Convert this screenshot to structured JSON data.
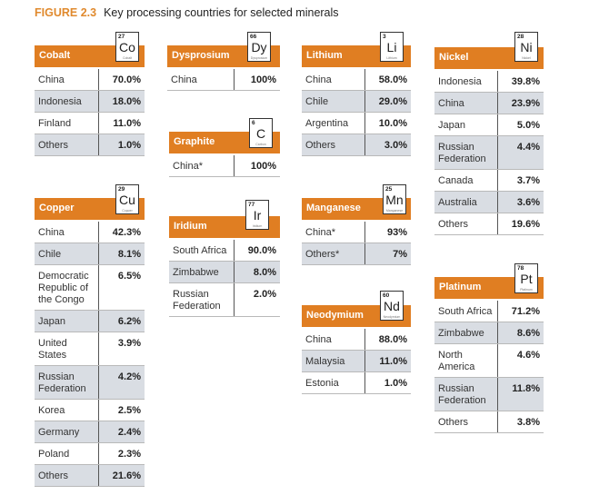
{
  "figure": {
    "number": "FIGURE 2.3",
    "title": "Key processing countries for selected minerals"
  },
  "colors": {
    "header": "#e07e22",
    "row_alt": "#d9dde3",
    "accent_text": "#e08a2e"
  },
  "cards": {
    "cobalt": {
      "name": "Cobalt",
      "element": {
        "number": "27",
        "symbol": "Co",
        "name": "Cobalt"
      },
      "rows": [
        {
          "country": "China",
          "pct": "70.0%"
        },
        {
          "country": "Indonesia",
          "pct": "18.0%"
        },
        {
          "country": "Finland",
          "pct": "11.0%"
        },
        {
          "country": "Others",
          "pct": "1.0%"
        }
      ]
    },
    "dysprosium": {
      "name": "Dysprosium",
      "element": {
        "number": "66",
        "symbol": "Dy",
        "name": "Dysprosium"
      },
      "rows": [
        {
          "country": "China",
          "pct": "100%"
        }
      ]
    },
    "lithium": {
      "name": "Lithium",
      "element": {
        "number": "3",
        "symbol": "Li",
        "name": "Lithium"
      },
      "rows": [
        {
          "country": "China",
          "pct": "58.0%"
        },
        {
          "country": "Chile",
          "pct": "29.0%"
        },
        {
          "country": "Argentina",
          "pct": "10.0%"
        },
        {
          "country": "Others",
          "pct": "3.0%"
        }
      ]
    },
    "nickel": {
      "name": "Nickel",
      "element": {
        "number": "28",
        "symbol": "Ni",
        "name": "Nickel"
      },
      "rows": [
        {
          "country": "Indonesia",
          "pct": "39.8%"
        },
        {
          "country": "China",
          "pct": "23.9%"
        },
        {
          "country": "Japan",
          "pct": "5.0%"
        },
        {
          "country": "Russian Federation",
          "pct": "4.4%"
        },
        {
          "country": "Canada",
          "pct": "3.7%"
        },
        {
          "country": "Australia",
          "pct": "3.6%"
        },
        {
          "country": "Others",
          "pct": "19.6%"
        }
      ]
    },
    "graphite": {
      "name": "Graphite",
      "element": {
        "number": "6",
        "symbol": "C",
        "name": "Carbon"
      },
      "rows": [
        {
          "country": "China*",
          "pct": "100%"
        }
      ]
    },
    "copper": {
      "name": "Copper",
      "element": {
        "number": "29",
        "symbol": "Cu",
        "name": "Copper"
      },
      "rows": [
        {
          "country": "China",
          "pct": "42.3%"
        },
        {
          "country": "Chile",
          "pct": "8.1%"
        },
        {
          "country": "Democratic Republic of the Congo",
          "pct": "6.5%"
        },
        {
          "country": "Japan",
          "pct": "6.2%"
        },
        {
          "country": "United States",
          "pct": "3.9%"
        },
        {
          "country": "Russian Federation",
          "pct": "4.2%"
        },
        {
          "country": "Korea",
          "pct": "2.5%"
        },
        {
          "country": "Germany",
          "pct": "2.4%"
        },
        {
          "country": "Poland",
          "pct": "2.3%"
        },
        {
          "country": "Others",
          "pct": "21.6%"
        }
      ]
    },
    "iridium": {
      "name": "Iridium",
      "element": {
        "number": "77",
        "symbol": "Ir",
        "name": "Iridium"
      },
      "rows": [
        {
          "country": "South Africa",
          "pct": "90.0%"
        },
        {
          "country": "Zimbabwe",
          "pct": "8.0%"
        },
        {
          "country": "Russian Federation",
          "pct": "2.0%"
        }
      ]
    },
    "manganese": {
      "name": "Manganese",
      "element": {
        "number": "25",
        "symbol": "Mn",
        "name": "Manganese"
      },
      "rows": [
        {
          "country": "China*",
          "pct": "93%"
        },
        {
          "country": "Others*",
          "pct": "7%"
        }
      ]
    },
    "neodymium": {
      "name": "Neodymium",
      "element": {
        "number": "60",
        "symbol": "Nd",
        "name": "Neodymium"
      },
      "rows": [
        {
          "country": "China",
          "pct": "88.0%"
        },
        {
          "country": "Malaysia",
          "pct": "11.0%"
        },
        {
          "country": "Estonia",
          "pct": "1.0%"
        }
      ]
    },
    "platinum": {
      "name": "Platinum",
      "element": {
        "number": "78",
        "symbol": "Pt",
        "name": "Platinum"
      },
      "rows": [
        {
          "country": "South Africa",
          "pct": "71.2%"
        },
        {
          "country": "Zimbabwe",
          "pct": "8.6%"
        },
        {
          "country": "North America",
          "pct": "4.6%"
        },
        {
          "country": "Russian Federation",
          "pct": "11.8%"
        },
        {
          "country": "Others",
          "pct": "3.8%"
        }
      ]
    }
  }
}
